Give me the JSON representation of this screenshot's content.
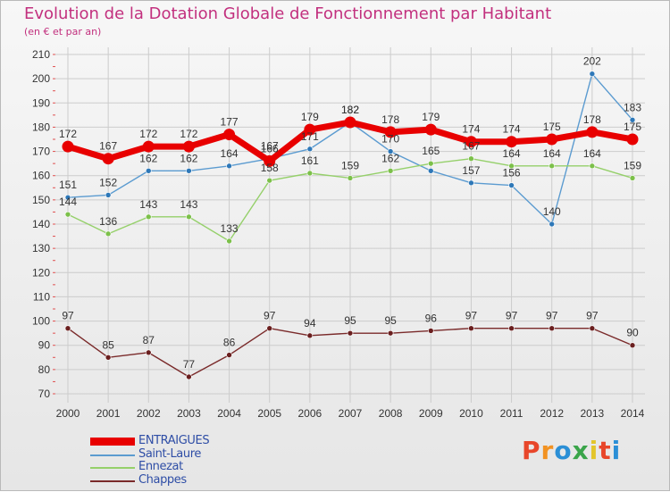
{
  "title": "Evolution de la Dotation Globale de Fonctionnement par Habitant",
  "subtitle": "(en € et par an)",
  "colors": {
    "title": "#c2307e",
    "axis_text": "#333333",
    "grid": "#cccccc",
    "legend_text": "#2f4ea6"
  },
  "brand": {
    "letters": [
      "P",
      "r",
      "o",
      "x",
      "i",
      "t",
      "i"
    ],
    "colors": [
      "#e8462a",
      "#f29222",
      "#2b8fd6",
      "#3aa54a",
      "#e3c52b",
      "#e8462a",
      "#2b8fd6"
    ]
  },
  "chart_data": {
    "type": "line",
    "title": "Evolution de la Dotation Globale de Fonctionnement par Habitant",
    "subtitle": "(en € et par an)",
    "xlabel": "",
    "ylabel": "",
    "ylim": [
      70,
      210
    ],
    "yticks": [
      70,
      80,
      90,
      100,
      110,
      120,
      130,
      140,
      150,
      160,
      170,
      180,
      190,
      200,
      210
    ],
    "grid": true,
    "legend_position": "bottom-left",
    "x": [
      "2000",
      "2001",
      "2002",
      "2003",
      "2004",
      "2005",
      "2006",
      "2007",
      "2008",
      "2009",
      "2010",
      "2011",
      "2012",
      "2013",
      "2014"
    ],
    "series": [
      {
        "name": "ENTRAIGUES",
        "color": "#e80000",
        "point_color": "#e80000",
        "emphasis": true,
        "values": [
          172,
          167,
          172,
          172,
          177,
          166,
          179,
          182,
          178,
          179,
          174,
          174,
          175,
          178,
          175
        ],
        "labels": [
          "172",
          "167",
          "172",
          "172",
          "177",
          "166",
          "179",
          "182",
          "178",
          "179",
          "174",
          "174",
          "175",
          "178",
          "175"
        ]
      },
      {
        "name": "Saint-Laure",
        "color": "#5b9bd0",
        "point_color": "#2e78b8",
        "emphasis": false,
        "values": [
          151,
          152,
          162,
          162,
          164,
          167,
          171,
          182,
          170,
          162,
          157,
          156,
          140,
          202,
          183
        ],
        "labels": [
          "151",
          "152",
          "162",
          "162",
          "164",
          "167",
          "171",
          "182",
          "170",
          "",
          "157",
          "156",
          "140",
          "202",
          "183"
        ]
      },
      {
        "name": "Ennezat",
        "color": "#95d06a",
        "point_color": "#7cc04a",
        "emphasis": false,
        "values": [
          144,
          136,
          143,
          143,
          133,
          158,
          161,
          159,
          162,
          165,
          167,
          164,
          164,
          164,
          159
        ],
        "labels": [
          "144",
          "136",
          "143",
          "143",
          "133",
          "158",
          "161",
          "159",
          "162",
          "165",
          "167",
          "164",
          "164",
          "164",
          "159"
        ]
      },
      {
        "name": "Chappes",
        "color": "#7a2a2a",
        "point_color": "#6a1f1f",
        "emphasis": false,
        "values": [
          97,
          85,
          87,
          77,
          86,
          97,
          94,
          95,
          95,
          96,
          97,
          97,
          97,
          97,
          90
        ],
        "labels": [
          "97",
          "85",
          "87",
          "77",
          "86",
          "97",
          "94",
          "95",
          "95",
          "96",
          "97",
          "97",
          "97",
          "97",
          "90"
        ]
      }
    ]
  }
}
